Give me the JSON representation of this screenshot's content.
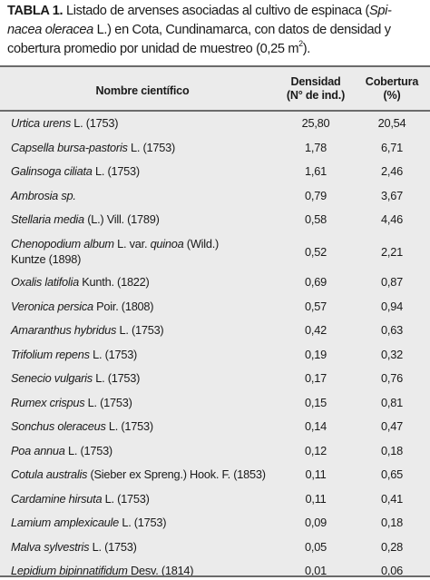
{
  "caption": {
    "label": "TABLA 1.",
    "line1": "Listado de arvenses asociadas al cultivo de espinaca (",
    "sp_a": "Spi-",
    "sp_b": "nacea oleracea",
    "line2": " L.) en Cota, Cundinamarca, con datos de densidad y cobertura promedio por unidad de muestreo (0,25 m",
    "sup": "2",
    "end": ")."
  },
  "header": {
    "name": "Nombre científico",
    "density_1": "Densidad",
    "density_2": "(N° de ind.)",
    "cover_1": "Cobertura",
    "cover_2": "(%)"
  },
  "rows": [
    {
      "sci": "Urtica urens",
      "auth": " L. (1753)",
      "den": "25,80",
      "cob": "20,54"
    },
    {
      "sci": "Capsella bursa-pastoris",
      "auth": " L. (1753)",
      "den": "1,78",
      "cob": "6,71"
    },
    {
      "sci": "Galinsoga ciliata",
      "auth": " L. (1753)",
      "den": "1,61",
      "cob": "2,46"
    },
    {
      "sci": "Ambrosia sp.",
      "auth": "",
      "den": "0,79",
      "cob": "3,67"
    },
    {
      "sci": "Stellaria media",
      "auth": " (L.) Vill. (1789)",
      "den": "0,58",
      "cob": "4,46"
    },
    {
      "sci": "Chenopodium album",
      "auth": " L. var. ",
      "sci2": "quinoa",
      "auth2": " (Wild.)",
      "line2": "Kuntze (1898)",
      "den": "0,52",
      "cob": "2,21"
    },
    {
      "sci": "Oxalis latifolia",
      "auth": " Kunth. (1822)",
      "den": "0,69",
      "cob": "0,87"
    },
    {
      "sci": "Veronica persica",
      "auth": " Poir. (1808)",
      "den": "0,57",
      "cob": "0,94"
    },
    {
      "sci": "Amaranthus hybridus",
      "auth": " L. (1753)",
      "den": "0,42",
      "cob": "0,63"
    },
    {
      "sci": "Trifolium repens",
      "auth": " L. (1753)",
      "den": "0,19",
      "cob": "0,32"
    },
    {
      "sci": "Senecio vulgaris",
      "auth": " L. (1753)",
      "den": "0,17",
      "cob": "0,76"
    },
    {
      "sci": "Rumex crispus",
      "auth": " L. (1753)",
      "den": "0,15",
      "cob": "0,81"
    },
    {
      "sci": "Sonchus oleraceus",
      "auth": " L. (1753)",
      "den": "0,14",
      "cob": "0,47"
    },
    {
      "sci": "Poa annua",
      "auth": " L. (1753)",
      "den": "0,12",
      "cob": "0,18"
    },
    {
      "sci": "Cotula australis",
      "auth": " (Sieber ex Spreng.) Hook. F. (1853)",
      "den": "0,11",
      "cob": "0,65"
    },
    {
      "sci": "Cardamine hirsuta",
      "auth": " L. (1753)",
      "den": "0,11",
      "cob": "0,41"
    },
    {
      "sci": "Lamium amplexicaule",
      "auth": " L. (1753)",
      "den": "0,09",
      "cob": "0,18"
    },
    {
      "sci": "Malva sylvestris",
      "auth": " L. (1753)",
      "den": "0,05",
      "cob": "0,28"
    },
    {
      "sci": "Lepidium bipinnatifidum",
      "auth": " Desv. (1814)",
      "den": "0,01",
      "cob": "0,06"
    }
  ]
}
